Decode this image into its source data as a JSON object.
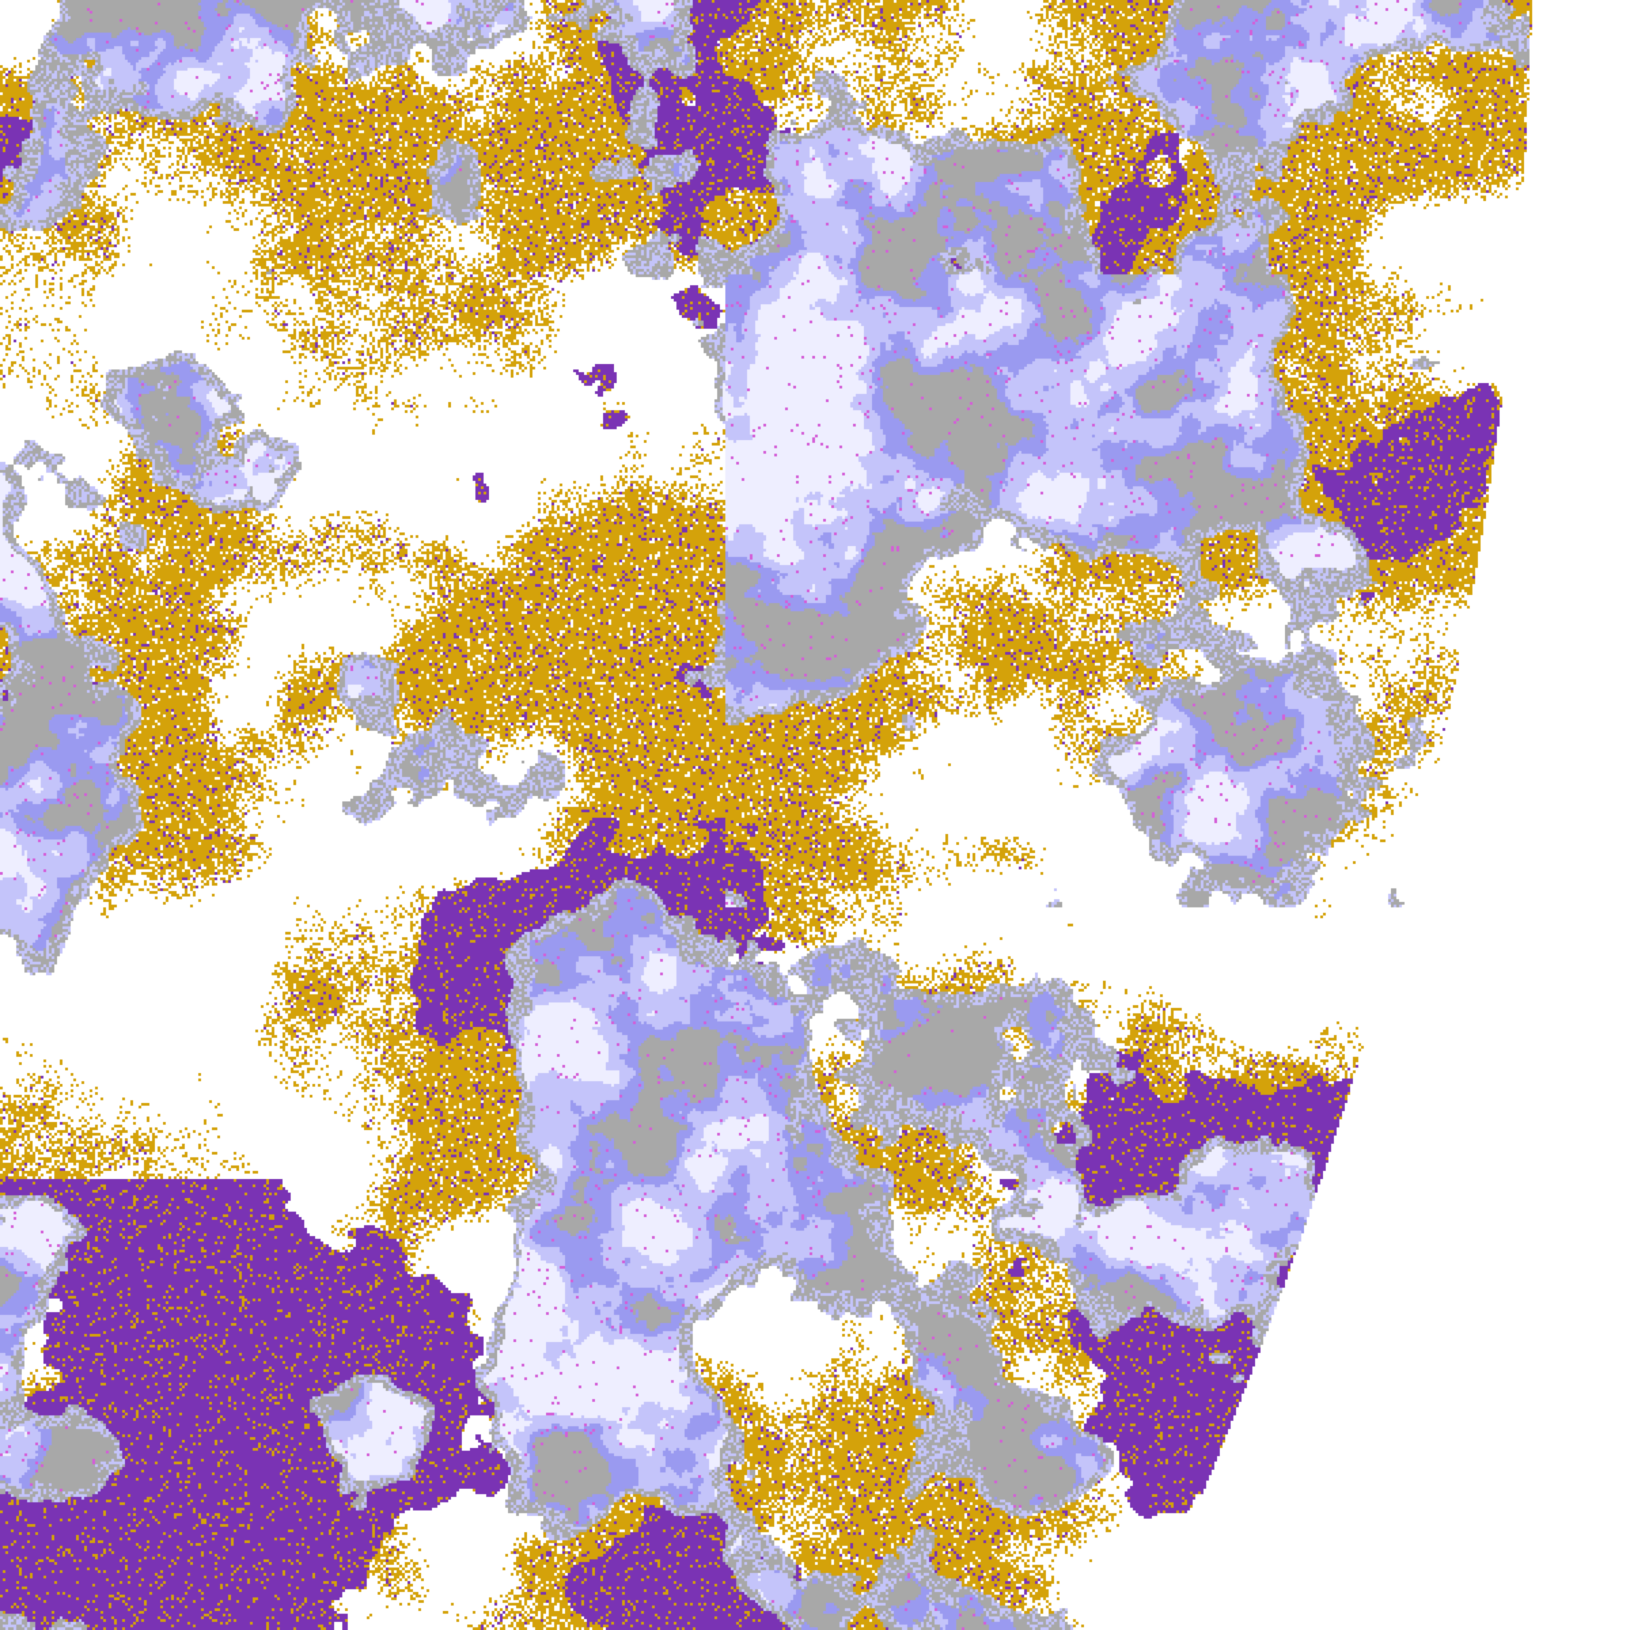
{
  "map": {
    "palette": {
      "background": "#ffffff",
      "gold": "#d4a20a",
      "purple": "#7a33b4",
      "lavender": "#c4c4fa",
      "pale": "#eeeeff",
      "periwinkle": "#9a9af0",
      "gray": "#a8a8a8",
      "pink": "#d45ed8"
    }
  }
}
